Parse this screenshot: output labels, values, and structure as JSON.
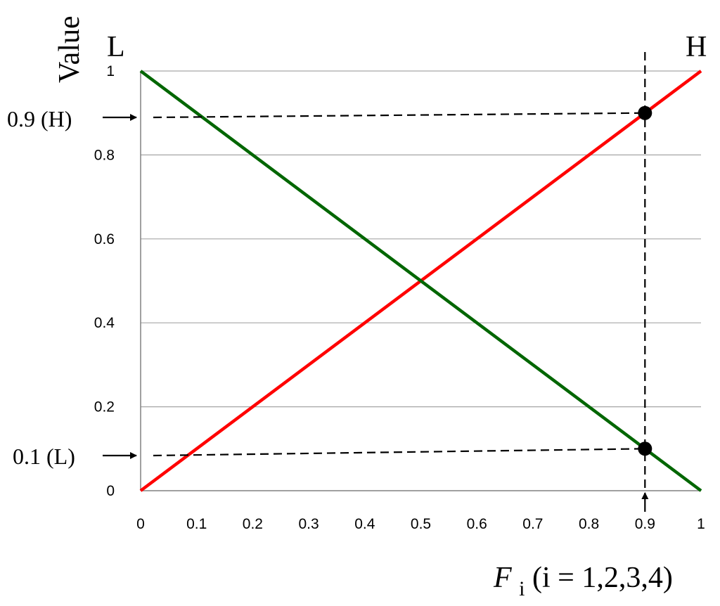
{
  "chart_data": {
    "type": "line",
    "title": "",
    "xlabel_var": "F",
    "xlabel_sub": "i",
    "xlabel_rest": " (i = 1,2,3,4)",
    "ylabel": "Value",
    "corner_left": "L",
    "corner_right": "H",
    "xlim": [
      0,
      1
    ],
    "ylim": [
      0,
      1
    ],
    "x_ticks": [
      0,
      0.1,
      0.2,
      0.3,
      0.4,
      0.5,
      0.6,
      0.7,
      0.8,
      0.9,
      1
    ],
    "x_tick_labels": [
      "0",
      "0.1",
      "0.2",
      "0.3",
      "0.4",
      "0.5",
      "0.6",
      "0.7",
      "0.8",
      "0.9",
      "1"
    ],
    "y_ticks": [
      0,
      0.2,
      0.4,
      0.6,
      0.8,
      1
    ],
    "y_tick_labels": [
      "0",
      "0.2",
      "0.4",
      "0.6",
      "0.8",
      "1"
    ],
    "grid": "horizontal",
    "series": [
      {
        "color": "#ff0000",
        "x": [
          0,
          1
        ],
        "y": [
          0,
          1
        ]
      },
      {
        "color": "#006600",
        "x": [
          0,
          1
        ],
        "y": [
          1,
          0
        ]
      }
    ],
    "markers": [
      {
        "x": 0.9,
        "y": 0.9
      },
      {
        "x": 0.9,
        "y": 0.1
      }
    ],
    "annotations": {
      "high_label": "0.9 (H)",
      "high_value": 0.9,
      "low_label": "0.1 (L)",
      "low_value": 0.1,
      "x_marker": 0.9
    }
  }
}
